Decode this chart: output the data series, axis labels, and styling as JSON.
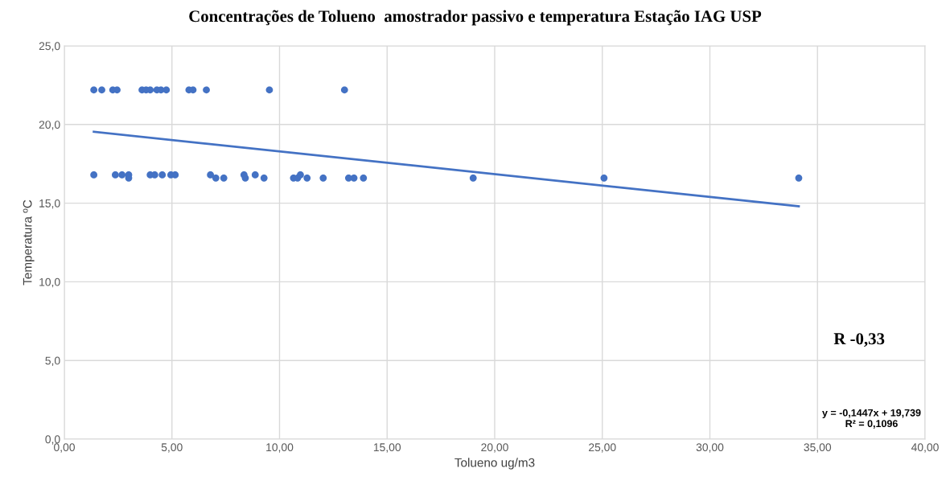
{
  "chart_data": {
    "type": "scatter",
    "title": "Concentrações de Tolueno  amostrador passivo e temperatura Estação IAG USP",
    "xlabel": "Tolueno ug/m3",
    "ylabel": "Temperatura ºC",
    "annotations": [
      "R -0,33",
      "y = -0,1447x + 19,739\nR² = 0,1096"
    ],
    "series": [
      {
        "color": "#4472c4",
        "x": [
          1.37,
          1.74,
          2.25,
          2.45,
          3.61,
          3.8,
          3.99,
          4.3,
          4.49,
          4.74,
          5.79,
          5.98,
          6.6,
          9.53,
          13.02,
          1.37,
          2.37,
          2.68,
          2.99,
          2.99,
          3.99,
          4.2,
          4.55,
          4.95,
          5.15,
          6.79,
          7.04,
          7.41,
          8.35,
          8.41,
          8.87,
          9.28,
          10.65,
          10.84,
          10.97,
          11.28,
          12.03,
          13.21,
          13.46,
          13.9,
          19.0,
          25.08,
          34.13
        ],
        "values": [
          22.2,
          22.2,
          22.2,
          22.2,
          22.2,
          22.2,
          22.2,
          22.2,
          22.2,
          22.2,
          22.2,
          22.2,
          22.2,
          22.2,
          22.2,
          16.8,
          16.8,
          16.8,
          16.8,
          16.6,
          16.8,
          16.8,
          16.8,
          16.8,
          16.8,
          16.8,
          16.6,
          16.6,
          16.8,
          16.6,
          16.8,
          16.6,
          16.6,
          16.6,
          16.8,
          16.6,
          16.6,
          16.6,
          16.6,
          16.6,
          16.6,
          16.6,
          16.6
        ]
      },
      {
        "type": "line",
        "color": "#4472c4",
        "x": [
          1.37,
          34.13
        ],
        "values": [
          19.54,
          14.8
        ],
        "marker": "none"
      }
    ],
    "marker": "circle",
    "grid": true,
    "xlim": [
      0,
      40
    ],
    "xticks": [
      {
        "value": 0,
        "label": "0,00"
      },
      {
        "value": 5,
        "label": "5,00"
      },
      {
        "value": 10,
        "label": "10,00"
      },
      {
        "value": 15,
        "label": "15,00"
      },
      {
        "value": 20,
        "label": "20,00"
      },
      {
        "value": 25,
        "label": "25,00"
      },
      {
        "value": 30,
        "label": "30,00"
      },
      {
        "value": 35,
        "label": "35,00"
      },
      {
        "value": 40,
        "label": "40,00"
      }
    ],
    "ylim": [
      0,
      25
    ],
    "yticks": [
      {
        "value": 0,
        "label": "0,0"
      },
      {
        "value": 5,
        "label": "5,0"
      },
      {
        "value": 10,
        "label": "10,0"
      },
      {
        "value": 15,
        "label": "15,0"
      },
      {
        "value": 20,
        "label": "20,0"
      },
      {
        "value": 25,
        "label": "25,0"
      }
    ]
  }
}
